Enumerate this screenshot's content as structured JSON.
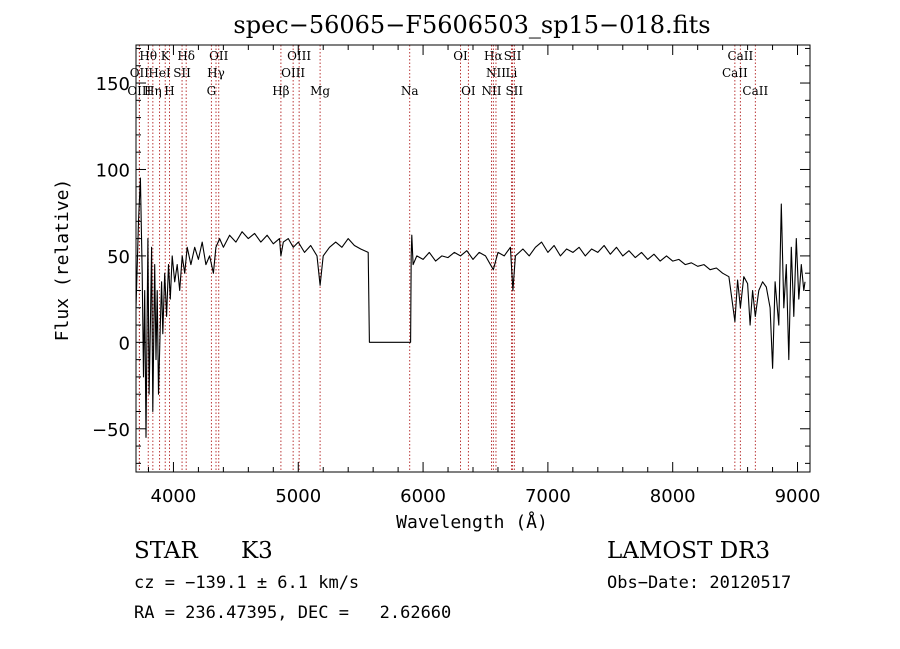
{
  "chart_data": {
    "type": "line",
    "title": "spec−56065−F5606503_sp15−018.fits",
    "xlabel": "Wavelength (Å)",
    "ylabel": "Flux (relative)",
    "xlim": [
      3700,
      9100
    ],
    "ylim": [
      -75,
      172
    ],
    "x_ticks": [
      4000,
      5000,
      6000,
      7000,
      8000,
      9000
    ],
    "y_ticks": [
      -50,
      0,
      50,
      100,
      150
    ],
    "y_tick_labels": [
      "−50",
      "0",
      "50",
      "100",
      "150"
    ],
    "grid": false,
    "series": [
      {
        "name": "spectrum",
        "points": [
          [
            3700,
            20
          ],
          [
            3720,
            70
          ],
          [
            3735,
            95
          ],
          [
            3750,
            40
          ],
          [
            3760,
            -20
          ],
          [
            3770,
            30
          ],
          [
            3780,
            -55
          ],
          [
            3795,
            60
          ],
          [
            3805,
            -30
          ],
          [
            3815,
            10
          ],
          [
            3825,
            55
          ],
          [
            3835,
            -40
          ],
          [
            3850,
            45
          ],
          [
            3860,
            -10
          ],
          [
            3870,
            30
          ],
          [
            3880,
            -30
          ],
          [
            3895,
            10
          ],
          [
            3905,
            35
          ],
          [
            3915,
            5
          ],
          [
            3930,
            40
          ],
          [
            3945,
            15
          ],
          [
            3960,
            45
          ],
          [
            3975,
            25
          ],
          [
            3990,
            50
          ],
          [
            4010,
            35
          ],
          [
            4030,
            45
          ],
          [
            4050,
            30
          ],
          [
            4070,
            50
          ],
          [
            4090,
            40
          ],
          [
            4110,
            55
          ],
          [
            4140,
            45
          ],
          [
            4170,
            55
          ],
          [
            4200,
            48
          ],
          [
            4230,
            58
          ],
          [
            4260,
            45
          ],
          [
            4290,
            50
          ],
          [
            4320,
            40
          ],
          [
            4340,
            55
          ],
          [
            4370,
            60
          ],
          [
            4400,
            55
          ],
          [
            4450,
            62
          ],
          [
            4500,
            58
          ],
          [
            4550,
            64
          ],
          [
            4600,
            60
          ],
          [
            4650,
            63
          ],
          [
            4700,
            58
          ],
          [
            4750,
            62
          ],
          [
            4800,
            57
          ],
          [
            4850,
            60
          ],
          [
            4861,
            50
          ],
          [
            4880,
            58
          ],
          [
            4920,
            60
          ],
          [
            4960,
            55
          ],
          [
            5000,
            58
          ],
          [
            5050,
            52
          ],
          [
            5100,
            56
          ],
          [
            5150,
            50
          ],
          [
            5175,
            33
          ],
          [
            5200,
            50
          ],
          [
            5250,
            55
          ],
          [
            5300,
            58
          ],
          [
            5350,
            55
          ],
          [
            5400,
            60
          ],
          [
            5450,
            56
          ],
          [
            5500,
            54
          ],
          [
            5560,
            52
          ],
          [
            5570,
            0
          ],
          [
            5900,
            0
          ],
          [
            5905,
            50
          ],
          [
            5910,
            62
          ],
          [
            5920,
            45
          ],
          [
            5950,
            50
          ],
          [
            6000,
            48
          ],
          [
            6050,
            52
          ],
          [
            6100,
            47
          ],
          [
            6150,
            50
          ],
          [
            6200,
            49
          ],
          [
            6250,
            52
          ],
          [
            6300,
            50
          ],
          [
            6350,
            53
          ],
          [
            6400,
            48
          ],
          [
            6450,
            52
          ],
          [
            6500,
            50
          ],
          [
            6563,
            42
          ],
          [
            6600,
            52
          ],
          [
            6650,
            50
          ],
          [
            6700,
            55
          ],
          [
            6720,
            30
          ],
          [
            6740,
            50
          ],
          [
            6800,
            54
          ],
          [
            6850,
            50
          ],
          [
            6900,
            55
          ],
          [
            6950,
            58
          ],
          [
            7000,
            52
          ],
          [
            7050,
            56
          ],
          [
            7100,
            50
          ],
          [
            7150,
            54
          ],
          [
            7200,
            52
          ],
          [
            7250,
            55
          ],
          [
            7300,
            50
          ],
          [
            7350,
            54
          ],
          [
            7400,
            52
          ],
          [
            7450,
            56
          ],
          [
            7500,
            51
          ],
          [
            7550,
            55
          ],
          [
            7600,
            50
          ],
          [
            7650,
            53
          ],
          [
            7700,
            49
          ],
          [
            7750,
            52
          ],
          [
            7800,
            48
          ],
          [
            7850,
            51
          ],
          [
            7900,
            47
          ],
          [
            7950,
            50
          ],
          [
            8000,
            47
          ],
          [
            8050,
            48
          ],
          [
            8100,
            45
          ],
          [
            8150,
            46
          ],
          [
            8200,
            44
          ],
          [
            8250,
            45
          ],
          [
            8300,
            42
          ],
          [
            8350,
            43
          ],
          [
            8400,
            40
          ],
          [
            8450,
            38
          ],
          [
            8498,
            12
          ],
          [
            8520,
            36
          ],
          [
            8542,
            20
          ],
          [
            8570,
            38
          ],
          [
            8600,
            34
          ],
          [
            8620,
            10
          ],
          [
            8640,
            30
          ],
          [
            8662,
            15
          ],
          [
            8690,
            30
          ],
          [
            8720,
            35
          ],
          [
            8750,
            32
          ],
          [
            8780,
            20
          ],
          [
            8800,
            -15
          ],
          [
            8820,
            35
          ],
          [
            8850,
            10
          ],
          [
            8870,
            80
          ],
          [
            8890,
            20
          ],
          [
            8910,
            45
          ],
          [
            8930,
            -10
          ],
          [
            8950,
            55
          ],
          [
            8970,
            15
          ],
          [
            8990,
            60
          ],
          [
            9010,
            25
          ],
          [
            9030,
            45
          ],
          [
            9050,
            30
          ],
          [
            9060,
            35
          ]
        ]
      }
    ],
    "line_markers": [
      {
        "name": "Hθ",
        "wavelength": 3798,
        "row": 0
      },
      {
        "name": "K",
        "wavelength": 3934,
        "row": 0
      },
      {
        "name": "Hδ",
        "wavelength": 4102,
        "row": 0
      },
      {
        "name": "OII",
        "wavelength": 4363,
        "row": 0
      },
      {
        "name": "OIII",
        "wavelength": 5007,
        "row": 0
      },
      {
        "name": "OI",
        "wavelength": 6300,
        "row": 0
      },
      {
        "name": "Hα",
        "wavelength": 6563,
        "row": 0
      },
      {
        "name": "SII",
        "wavelength": 6717,
        "row": 0
      },
      {
        "name": "CaII",
        "wavelength": 8542,
        "row": 0
      },
      {
        "name": "OII",
        "wavelength": 3727,
        "row": 1
      },
      {
        "name": "HeI",
        "wavelength": 3889,
        "row": 1
      },
      {
        "name": "SII",
        "wavelength": 4069,
        "row": 1
      },
      {
        "name": "Hγ",
        "wavelength": 4341,
        "row": 1
      },
      {
        "name": "OIII",
        "wavelength": 4959,
        "row": 1
      },
      {
        "name": "NII",
        "wavelength": 6584,
        "row": 1
      },
      {
        "name": "Li",
        "wavelength": 6708,
        "row": 1
      },
      {
        "name": "CaII",
        "wavelength": 8498,
        "row": 1
      },
      {
        "name": "OIII",
        "wavelength": 3727,
        "row": 2
      },
      {
        "name": "Hη",
        "wavelength": 3835,
        "row": 2
      },
      {
        "name": "H",
        "wavelength": 3968,
        "row": 2
      },
      {
        "name": "G",
        "wavelength": 4304,
        "row": 2
      },
      {
        "name": "Hβ",
        "wavelength": 4861,
        "row": 2
      },
      {
        "name": "Mg",
        "wavelength": 5175,
        "row": 2
      },
      {
        "name": "Na",
        "wavelength": 5893,
        "row": 2
      },
      {
        "name": "OI",
        "wavelength": 6363,
        "row": 2
      },
      {
        "name": "NII",
        "wavelength": 6548,
        "row": 2
      },
      {
        "name": "SII",
        "wavelength": 6731,
        "row": 2
      },
      {
        "name": "CaII",
        "wavelength": 8662,
        "row": 2
      }
    ]
  },
  "footer": {
    "object_class": "STAR",
    "subclass": "K3",
    "survey": "LAMOST DR3",
    "cz": "cz = −139.1 ± 6.1 km/s",
    "obs_date": "Obs−Date: 20120517",
    "coords": "RA = 236.47395, DEC =   2.62660"
  }
}
